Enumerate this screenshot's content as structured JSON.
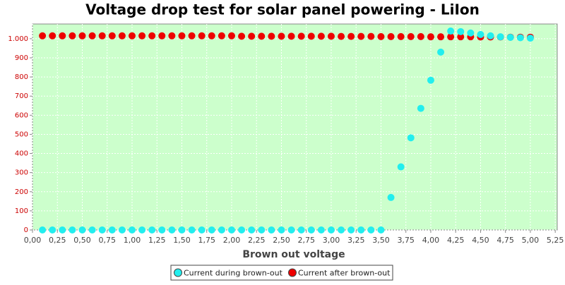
{
  "chart_data": {
    "type": "scatter",
    "title": "Voltage drop test for solar panel powering -  LiIon",
    "x_label": "Brown out voltage",
    "x": [
      0.1,
      0.2,
      0.3,
      0.4,
      0.5,
      0.6,
      0.7,
      0.8,
      0.9,
      1.0,
      1.1,
      1.2,
      1.3,
      1.4,
      1.5,
      1.6,
      1.7,
      1.8,
      1.9,
      2.0,
      2.1,
      2.2,
      2.3,
      2.4,
      2.5,
      2.6,
      2.7,
      2.8,
      2.9,
      3.0,
      3.1,
      3.2,
      3.3,
      3.4,
      3.5,
      3.6,
      3.7,
      3.8,
      3.9,
      4.0,
      4.1,
      4.2,
      4.3,
      4.4,
      4.5,
      4.6,
      4.7,
      4.8,
      4.9,
      5.0
    ],
    "series": [
      {
        "name": "Current after brown-out",
        "color": "#ee0000",
        "values": [
          1015,
          1015,
          1015,
          1015,
          1015,
          1015,
          1015,
          1015,
          1015,
          1015,
          1015,
          1015,
          1015,
          1015,
          1015,
          1015,
          1015,
          1015,
          1015,
          1015,
          1013,
          1013,
          1013,
          1013,
          1013,
          1013,
          1013,
          1013,
          1013,
          1013,
          1012,
          1012,
          1012,
          1012,
          1011,
          1011,
          1011,
          1011,
          1011,
          1010,
          1010,
          1010,
          1010,
          1010,
          1009,
          1009,
          1009,
          1008,
          1008,
          1008
        ]
      },
      {
        "name": "Current during brown-out",
        "color": "#22eeee",
        "values": [
          0,
          0,
          0,
          0,
          0,
          0,
          0,
          0,
          0,
          0,
          0,
          0,
          0,
          0,
          0,
          0,
          0,
          0,
          0,
          0,
          0,
          0,
          0,
          0,
          0,
          0,
          0,
          0,
          0,
          0,
          0,
          0,
          0,
          0,
          0,
          170,
          330,
          482,
          636,
          783,
          930,
          1040,
          1037,
          1030,
          1022,
          1015,
          1010,
          1007,
          1005,
          1003
        ]
      }
    ],
    "legend_order": [
      1,
      0
    ],
    "xlim": [
      0,
      5.27
    ],
    "ylim": [
      0,
      1077
    ],
    "xticks": [
      {
        "value": 0,
        "label": "0,00"
      },
      {
        "value": 0.25,
        "label": "0,25"
      },
      {
        "value": 0.5,
        "label": "0,50"
      },
      {
        "value": 0.75,
        "label": "0,75"
      },
      {
        "value": 1,
        "label": "1,00"
      },
      {
        "value": 1.25,
        "label": "1,25"
      },
      {
        "value": 1.5,
        "label": "1,50"
      },
      {
        "value": 1.75,
        "label": "1,75"
      },
      {
        "value": 2,
        "label": "2,00"
      },
      {
        "value": 2.25,
        "label": "2,25"
      },
      {
        "value": 2.5,
        "label": "2,50"
      },
      {
        "value": 2.75,
        "label": "2,75"
      },
      {
        "value": 3,
        "label": "3,00"
      },
      {
        "value": 3.25,
        "label": "3,25"
      },
      {
        "value": 3.5,
        "label": "3,50"
      },
      {
        "value": 3.75,
        "label": "3,75"
      },
      {
        "value": 4,
        "label": "4,00"
      },
      {
        "value": 4.25,
        "label": "4,25"
      },
      {
        "value": 4.5,
        "label": "4,50"
      },
      {
        "value": 4.75,
        "label": "4,75"
      },
      {
        "value": 5,
        "label": "5,00"
      },
      {
        "value": 5.25,
        "label": "5,25"
      }
    ],
    "yticks": [
      0,
      100,
      200,
      300,
      400,
      500,
      600,
      700,
      800,
      900,
      {
        "value": 1000,
        "label": "1.000"
      }
    ],
    "grid": true,
    "background": "#ccffcc"
  }
}
